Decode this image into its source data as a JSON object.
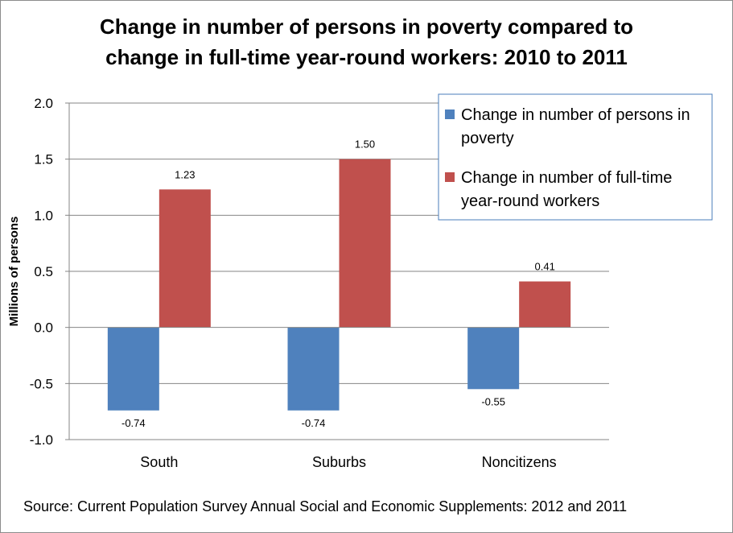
{
  "chart_data": {
    "type": "bar",
    "title_lines": [
      "Change in number of persons in poverty compared to",
      "change in full-time year-round workers:  2010 to 2011"
    ],
    "xlabel": "",
    "ylabel": "Millions of persons",
    "ylim": [
      -1.0,
      2.0
    ],
    "yticks": [
      "2.0",
      "1.5",
      "1.0",
      "0.5",
      "0.0",
      "-0.5",
      "-1.0"
    ],
    "ytick_values": [
      2.0,
      1.5,
      1.0,
      0.5,
      0.0,
      -0.5,
      -1.0
    ],
    "categories": [
      "South",
      "Suburbs",
      "Noncitizens"
    ],
    "series": [
      {
        "name": "Change in number of persons in poverty",
        "legend_lines": [
          "Change in number of persons in",
          "poverty"
        ],
        "color": "#4f81bd",
        "values": [
          -0.74,
          -0.74,
          -0.55
        ],
        "labels": [
          "-0.74",
          "-0.74",
          "-0.55"
        ]
      },
      {
        "name": "Change in number of full-time year-round workers",
        "legend_lines": [
          "Change in number of full-time",
          "year-round workers"
        ],
        "color": "#c0504d",
        "values": [
          1.23,
          1.5,
          0.41
        ],
        "labels": [
          "1.23",
          "1.50",
          "0.41"
        ]
      }
    ],
    "grid": true,
    "legend_position": "top-right"
  },
  "source": "Source:  Current Population Survey Annual Social and Economic Supplements:  2012 and 2011"
}
